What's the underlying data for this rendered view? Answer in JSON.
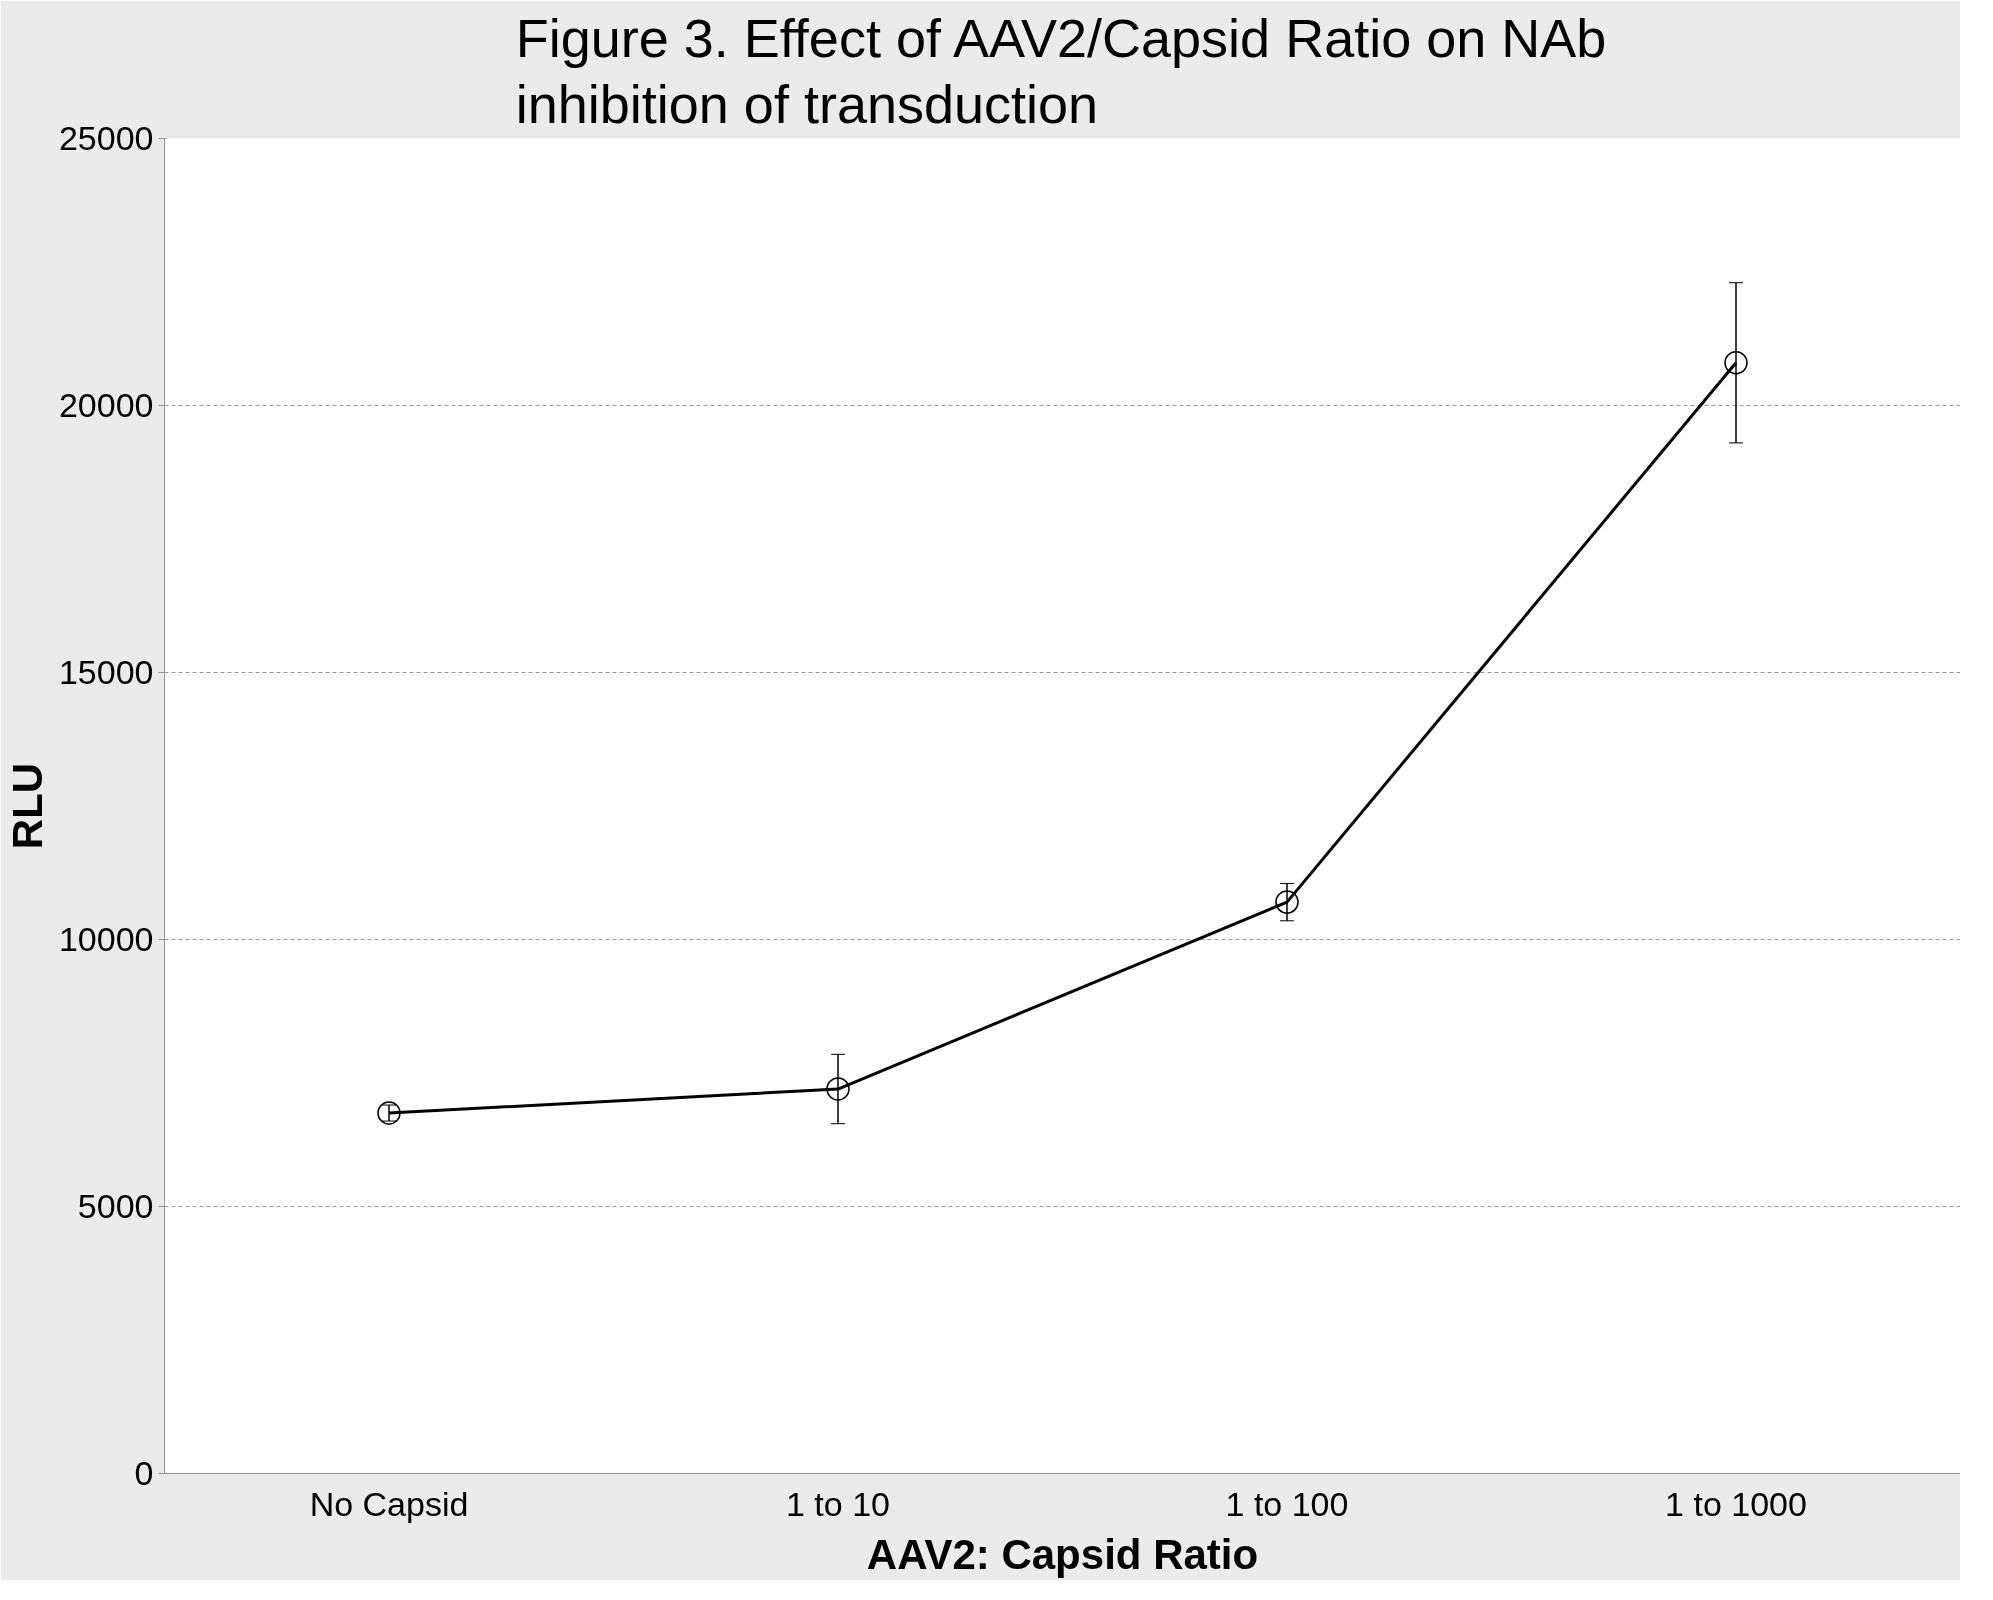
{
  "chart_data": {
    "type": "line",
    "title": "Figure 3. Effect of AAV2/Capsid Ratio on NAb inhibition of transduction",
    "xlabel": "AAV2: Capsid Ratio",
    "ylabel": "RLU",
    "categories": [
      "No Capsid",
      "1 to 10",
      "1 to 100",
      "1 to 1000"
    ],
    "series": [
      {
        "color": "#000000",
        "values": [
          6750,
          7200,
          10700,
          20800
        ],
        "errors": [
          150,
          650,
          350,
          1500
        ]
      }
    ],
    "ylim": [
      0,
      25000
    ],
    "yticks": [
      0,
      5000,
      10000,
      15000,
      20000,
      25000
    ],
    "grid": "y",
    "marker": "circle",
    "line_style": "solid"
  }
}
